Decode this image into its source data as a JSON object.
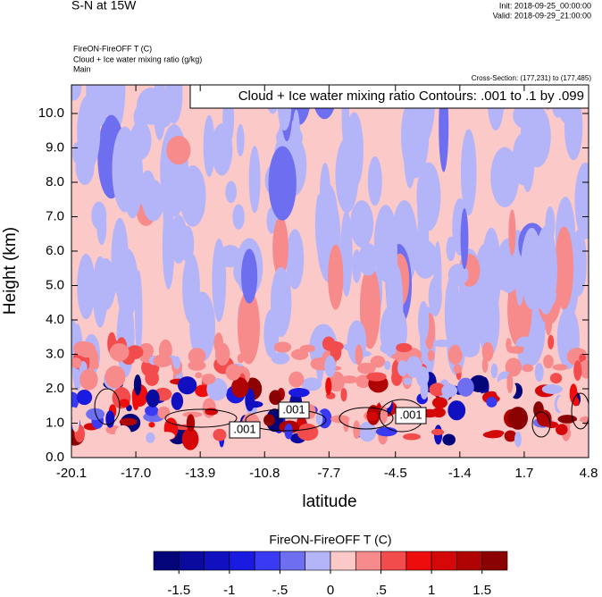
{
  "chart_data": {
    "type": "contour",
    "title": "S-N at 15W",
    "init": "Init: 2018-09-25_00:00:00",
    "valid": "Valid: 2018-09-29_21:00:00",
    "field_lines": [
      "FireON-FireOFF T   (C)",
      "Cloud + Ice water mixing ratio   (g/kg)",
      "Main"
    ],
    "cross_section": "Cross-Section: (177,231) to (177,485)",
    "contour_info": "Cloud + Ice water mixing ratio Contours: .001 to .1 by .099",
    "contour_labels": [
      ".001",
      ".001",
      ".001"
    ],
    "xlabel": "latitude",
    "ylabel": "Height (km)",
    "xlim": [
      -20.1,
      4.8
    ],
    "xticks": [
      -20.1,
      {
        "value": -17.0,
        "label": "-17.0"
      },
      -13.9,
      -10.8,
      -7.7,
      -4.5,
      -1.4,
      1.7,
      4.8
    ],
    "ylim": [
      0,
      10.83
    ],
    "yticks": [
      {
        "value": 0,
        "label": "0.0"
      },
      {
        "value": 1,
        "label": "1.0"
      },
      {
        "value": 2,
        "label": "2.0"
      },
      {
        "value": 3,
        "label": "3.0"
      },
      {
        "value": 4,
        "label": "4.0"
      },
      {
        "value": 5,
        "label": "5.0"
      },
      {
        "value": 6,
        "label": "6.0"
      },
      {
        "value": 7,
        "label": "7.0"
      },
      {
        "value": 8,
        "label": "8.0"
      },
      {
        "value": 9,
        "label": "9.0"
      },
      {
        "value": 10,
        "label": "10.0"
      }
    ],
    "colorbar": {
      "title": "FireON-FireOFF T  (C)",
      "clim": [
        -1.75,
        1.75
      ],
      "ticks": [
        -1.5,
        -1,
        {
          "value": -0.5,
          "label": "-.5"
        },
        0,
        {
          "value": 0.5,
          "label": ".5"
        },
        1,
        1.5
      ],
      "colors": [
        "#05057a",
        "#0a0a9e",
        "#1010c0",
        "#1a1ae0",
        "#3a3af5",
        "#6e6ef0",
        "#b4b4f8",
        "#fcc9c9",
        "#f78a8a",
        "#f24c4c",
        "#ee0d0d",
        "#d40808",
        "#b00404",
        "#8a0202"
      ]
    }
  }
}
